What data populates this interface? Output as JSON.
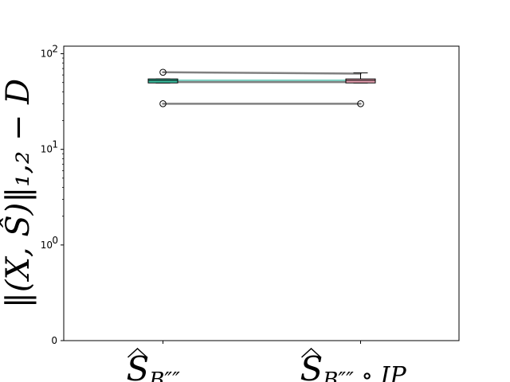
{
  "chart_data": {
    "type": "boxplot",
    "yscale": "symlog",
    "ylim": [
      0,
      120
    ],
    "yticks": [
      {
        "value": 0,
        "label": "0"
      },
      {
        "value": 1,
        "label": "10",
        "exp": "0"
      },
      {
        "value": 10,
        "label": "10",
        "exp": "1"
      },
      {
        "value": 100,
        "label": "10",
        "exp": "2"
      }
    ],
    "ylabel": "‖(X, Ŝ)‖₁,₂ − D",
    "categories": [
      {
        "main": "S",
        "sub": "B″″"
      },
      {
        "main": "S",
        "sub": "B″″",
        "suffix": "∘ IP"
      }
    ],
    "boxes": [
      {
        "name": "Ŝ_B",
        "color": "#3ec8a8",
        "q1": 49.5,
        "median": 52.5,
        "q3": 54.5,
        "whislo": 49.5,
        "whishi": 54.5,
        "fliers": [
          30,
          64
        ]
      },
      {
        "name": "Ŝ_B ∘ IP",
        "color": "#f2a6b8",
        "q1": 49.5,
        "median": 52.5,
        "q3": 54.5,
        "whislo": 49.5,
        "whishi": 63,
        "fliers": [
          30
        ]
      }
    ],
    "pair_lines": [
      {
        "from": 64,
        "to": 62,
        "color": "#808080"
      },
      {
        "from": 52.5,
        "to": 52.5,
        "color": "#7fd3c4"
      },
      {
        "from": 50.5,
        "to": 50.5,
        "color": "#808080"
      },
      {
        "from": 30,
        "to": 30,
        "color": "#808080"
      }
    ]
  }
}
